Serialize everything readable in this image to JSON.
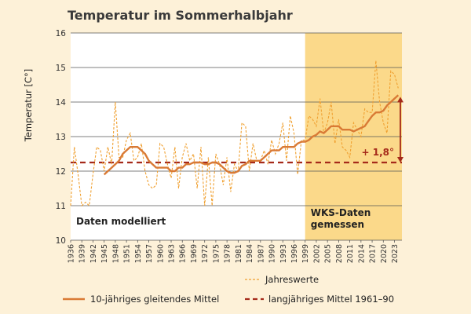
{
  "chart_data": {
    "type": "line",
    "title": "Temperatur im Sommerhalbjahr",
    "ylabel": "Temperatur [C°]",
    "ylim": [
      10,
      16
    ],
    "yticks": [
      "10",
      "11",
      "12",
      "13",
      "14",
      "15",
      "16"
    ],
    "xlim": [
      1936,
      2025
    ],
    "xticks": [
      "1936",
      "1939",
      "1942",
      "1945",
      "1948",
      "1951",
      "1954",
      "1957",
      "1960",
      "1963",
      "1966",
      "1969",
      "1972",
      "1975",
      "1978",
      "1981",
      "1984",
      "1987",
      "1990",
      "1993",
      "1996",
      "1999",
      "2002",
      "2005",
      "2008",
      "2011",
      "2014",
      "2017",
      "2020",
      "2023"
    ],
    "regions": [
      {
        "label": "Daten modelliert",
        "from": 1936,
        "to": 1999
      },
      {
        "label_lines": [
          "WKS-Daten",
          "gemessen"
        ],
        "from": 1999,
        "to": 2025
      }
    ],
    "annotation": {
      "text": "+ 1,8°",
      "from_value": 12.25,
      "to_value": 14.15
    },
    "series": [
      {
        "name": "Jahreswerte",
        "style": "dashed-thin",
        "color": "#f0a030",
        "x": [
          1936,
          1937,
          1938,
          1939,
          1940,
          1941,
          1942,
          1943,
          1944,
          1945,
          1946,
          1947,
          1948,
          1949,
          1950,
          1951,
          1952,
          1953,
          1954,
          1955,
          1956,
          1957,
          1958,
          1959,
          1960,
          1961,
          1962,
          1963,
          1964,
          1965,
          1966,
          1967,
          1968,
          1969,
          1970,
          1971,
          1972,
          1973,
          1974,
          1975,
          1976,
          1977,
          1978,
          1979,
          1980,
          1981,
          1982,
          1983,
          1984,
          1985,
          1986,
          1987,
          1988,
          1989,
          1990,
          1991,
          1992,
          1993,
          1994,
          1995,
          1996,
          1997,
          1998,
          1999,
          2000,
          2001,
          2002,
          2003,
          2004,
          2005,
          2006,
          2007,
          2008,
          2009,
          2010,
          2011,
          2012,
          2013,
          2014,
          2015,
          2016,
          2017,
          2018,
          2019,
          2020,
          2021,
          2022,
          2023,
          2024
        ],
        "values": [
          11.0,
          12.7,
          11.9,
          11.0,
          11.1,
          11.0,
          11.9,
          12.7,
          12.6,
          12.0,
          12.7,
          12.2,
          14.0,
          12.4,
          12.4,
          12.9,
          13.1,
          12.3,
          12.4,
          12.8,
          12.0,
          11.6,
          11.5,
          11.6,
          12.8,
          12.7,
          12.2,
          11.8,
          12.7,
          11.5,
          12.4,
          12.8,
          12.3,
          12.5,
          11.5,
          12.7,
          11.0,
          12.4,
          11.0,
          12.5,
          12.2,
          11.6,
          12.4,
          11.4,
          12.2,
          12.0,
          13.4,
          13.3,
          12.0,
          12.8,
          12.3,
          12.3,
          12.6,
          12.2,
          12.9,
          12.5,
          12.8,
          13.4,
          12.3,
          13.6,
          13.1,
          11.9,
          12.9,
          12.9,
          13.6,
          13.5,
          13.3,
          14.1,
          13.1,
          13.4,
          14.0,
          12.8,
          13.5,
          12.7,
          12.6,
          12.4,
          13.4,
          13.2,
          13.0,
          13.8,
          13.7,
          13.7,
          15.2,
          14.0,
          13.4,
          13.1,
          14.9,
          14.8,
          14.4
        ]
      },
      {
        "name": "10-jähriges gleitendes Mittel",
        "style": "solid-thick",
        "color": "#d97a35",
        "x": [
          1945,
          1946,
          1947,
          1948,
          1949,
          1950,
          1951,
          1952,
          1953,
          1954,
          1955,
          1956,
          1957,
          1958,
          1959,
          1960,
          1961,
          1962,
          1963,
          1964,
          1965,
          1966,
          1967,
          1968,
          1969,
          1970,
          1971,
          1972,
          1973,
          1974,
          1975,
          1976,
          1977,
          1978,
          1979,
          1980,
          1981,
          1982,
          1983,
          1984,
          1985,
          1986,
          1987,
          1988,
          1989,
          1990,
          1991,
          1992,
          1993,
          1994,
          1995,
          1996,
          1997,
          1998,
          1999,
          2000,
          2001,
          2002,
          2003,
          2004,
          2005,
          2006,
          2007,
          2008,
          2009,
          2010,
          2011,
          2012,
          2013,
          2014,
          2015,
          2016,
          2017,
          2018,
          2019,
          2020,
          2021,
          2022,
          2023,
          2024
        ],
        "values": [
          11.9,
          12.0,
          12.1,
          12.2,
          12.3,
          12.5,
          12.6,
          12.7,
          12.7,
          12.7,
          12.6,
          12.5,
          12.3,
          12.2,
          12.1,
          12.1,
          12.1,
          12.1,
          12.0,
          12.0,
          12.1,
          12.1,
          12.2,
          12.2,
          12.25,
          12.25,
          12.25,
          12.2,
          12.2,
          12.25,
          12.25,
          12.2,
          12.1,
          12.0,
          11.95,
          11.95,
          12.0,
          12.15,
          12.2,
          12.3,
          12.3,
          12.3,
          12.3,
          12.4,
          12.5,
          12.6,
          12.6,
          12.6,
          12.7,
          12.7,
          12.7,
          12.7,
          12.8,
          12.85,
          12.85,
          12.9,
          13.0,
          13.05,
          13.15,
          13.1,
          13.2,
          13.3,
          13.3,
          13.3,
          13.2,
          13.2,
          13.2,
          13.15,
          13.2,
          13.25,
          13.3,
          13.45,
          13.6,
          13.7,
          13.7,
          13.75,
          13.9,
          14.0,
          14.1,
          14.2
        ]
      },
      {
        "name": "langjähriges Mittel 1961–90",
        "style": "dashed-thick",
        "color": "#a52a1a",
        "x": [
          1936,
          2025
        ],
        "values": [
          12.25,
          12.25
        ]
      }
    ],
    "legend": {
      "position": "bottom",
      "entries": [
        "Jahreswerte",
        "10-jähriges gleitendes Mittel",
        "langjähriges Mittel 1961–90"
      ]
    }
  }
}
